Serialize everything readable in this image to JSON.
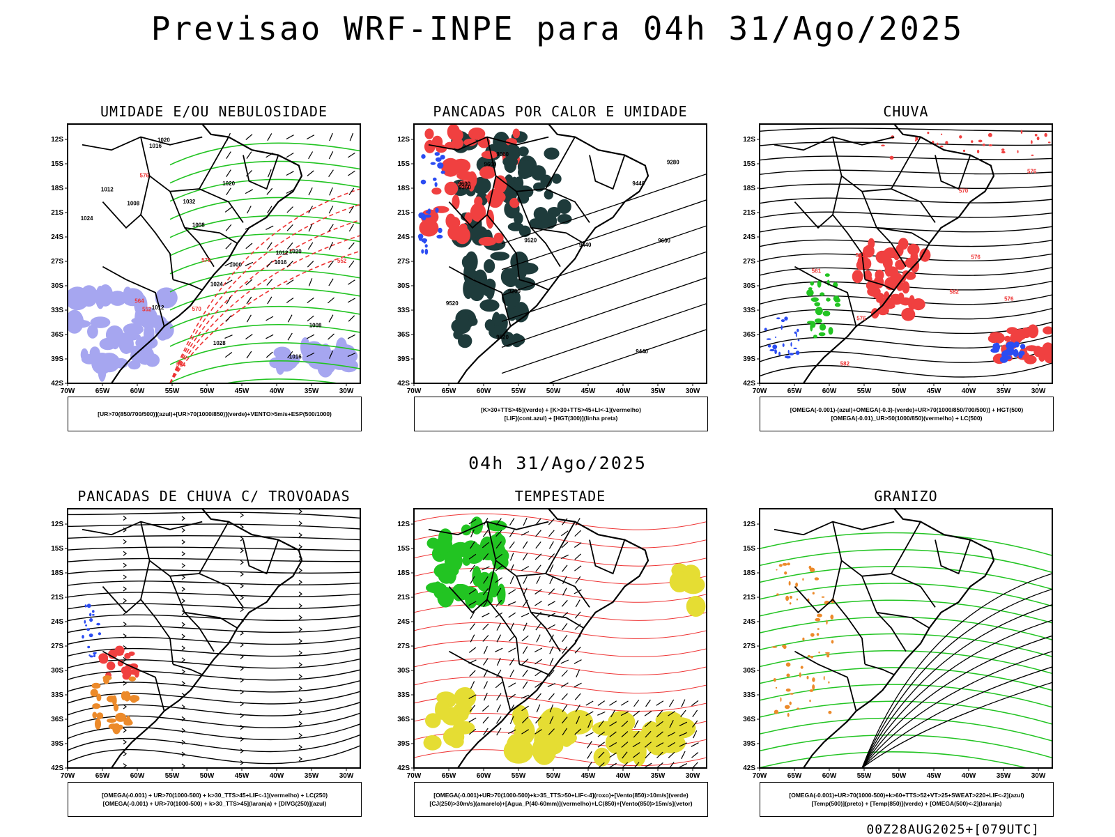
{
  "title": "Previsao WRF-INPE  para 04h 31/Ago/2025",
  "mid_title": "04h 31/Ago/2025",
  "footer": "00Z28AUG2025+[079UTC]",
  "lat_labels": [
    "12S",
    "15S",
    "18S",
    "21S",
    "24S",
    "27S",
    "30S",
    "33S",
    "36S",
    "39S",
    "42S"
  ],
  "lon_labels": [
    "70W",
    "65W",
    "60W",
    "55W",
    "50W",
    "45W",
    "40W",
    "35W",
    "30W"
  ],
  "colors": {
    "blue_shade": "#a6a6f0",
    "green_contour": "#22c422",
    "red_contour": "#ee3333",
    "dark_teal": "#1e3b3b",
    "red_fill": "#f04040",
    "yellow_fill": "#e5dd33",
    "orange": "#ec8a2a",
    "blue_dots": "#2b4cf2"
  },
  "panels": [
    {
      "title": "UMIDADE E/OU NEBULOSIDADE",
      "legend": [
        "[UR>70(850/700/500)](azul)+[UR>70(1000/850)](verde)+VENTO>5m/s+ESP(500/1000)"
      ],
      "labels": [
        "1008",
        "1012",
        "1008",
        "1016",
        "1012",
        "1020",
        "1024",
        "1000",
        "1008",
        "1016",
        "1020",
        "1012",
        "1016",
        "1020",
        "1024",
        "1028",
        "1032",
        "576",
        "564",
        "570",
        "552",
        "552",
        "576",
        "564"
      ]
    },
    {
      "title": "PANCADAS POR CALOR E UMIDADE",
      "legend": [
        "[K>30+TTS>45](verde) + [K>30+TTS>45+LI<-1](vermelho)",
        "[LIF](cont.azul) + [HGT(300)](linha preta)"
      ],
      "labels": [
        "9600",
        "9600",
        "9520",
        "9440",
        "9520",
        "9360",
        "9440",
        "9520",
        "9200",
        "9280",
        "9440",
        "9360",
        "9600"
      ]
    },
    {
      "title": "CHUVA",
      "legend": [
        "[OMEGA(-0.001)-(azul)+OMEGA(-0.3)-(verde)+UR>70(1000/850/700/500)] + HGT(500)",
        "[OMEGA(-0.01)_UR>50(1000/850)(vermelho) + LC(500)"
      ],
      "labels": [
        "582",
        "582",
        "582",
        "576",
        "576",
        "570",
        "561",
        "576",
        "576"
      ]
    },
    {
      "title": "PANCADAS DE CHUVA C/ TROVOADAS",
      "legend": [
        "[OMEGA(-0.001) + UR>70(1000-500) + k>30_TTS>45+LIF<-1](vermelho) + LC(250)",
        "[OMEGA(-0.001) + UR>70(1000-500) + k>30_TTS>45](laranja) + [DIVG(250)](azul)"
      ],
      "labels": []
    },
    {
      "title": "TEMPESTADE",
      "legend": [
        "[OMEGA(-0.001)+UR>70(1000-500)+k>35_TTS>50+LIF<-4](roxo)+[Vento(850)>10m/s](verde)",
        "[CJ(250)>30m/s](amarelo)+[Agua_P(40-60mm)](vermelho)+LC(850)+[Vento(850)>15m/s](vetor)"
      ],
      "labels": []
    },
    {
      "title": "GRANIZO",
      "legend": [
        "[OMEGA(-0.001)+UR>70(1000-500)+k>60+TTS>52+VT>25+SWEAT>220+LIF<-2](azul)",
        "[Temp(500)](preto) + [Temp(850)](verde) + [OMEGA(500)<-2](laranja)"
      ],
      "labels": []
    }
  ]
}
